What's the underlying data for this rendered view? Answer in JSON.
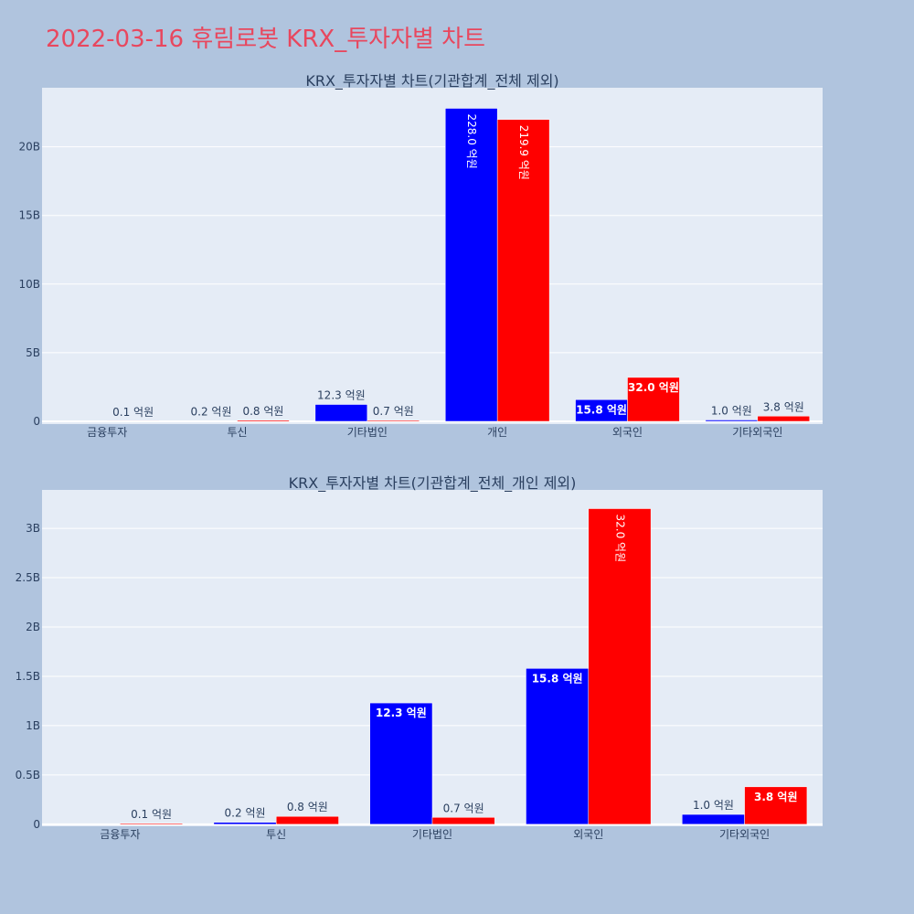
{
  "title": "2022-03-16 휴림로봇 KRX_투자자별 차트",
  "colors": {
    "background": "#b0c4de",
    "plot_bg": "#e5ecf6",
    "buy": "#0000ff",
    "sell": "#ff0000",
    "title": "#e8475e",
    "text": "#2a3f5f"
  },
  "chart_data": [
    {
      "type": "bar",
      "title": "KRX_투자자별 차트(기관합계_전체 제외)",
      "categories": [
        "금융투자",
        "투신",
        "기타법인",
        "개인",
        "외국인",
        "기타외국인"
      ],
      "series": [
        {
          "color": "#0000ff",
          "values": [
            0,
            0.02,
            1.23,
            22.8,
            1.58,
            0.1
          ],
          "labels": [
            "",
            "0.2 억원",
            "12.3 억원",
            "228.0 억원",
            "15.8 억원",
            "1.0 억원"
          ]
        },
        {
          "color": "#ff0000",
          "values": [
            0.01,
            0.08,
            0.07,
            21.99,
            3.2,
            0.38
          ],
          "labels": [
            "0.1 억원",
            "0.8 억원",
            "0.7 억원",
            "219.9 억원",
            "32.0 억원",
            "3.8 억원"
          ]
        }
      ],
      "yticks": [
        0,
        5,
        10,
        15,
        20
      ],
      "yticklabels": [
        "0",
        "5B",
        "10B",
        "15B",
        "20B"
      ],
      "ylim": [
        -0.2,
        24.3
      ],
      "grid": true
    },
    {
      "type": "bar",
      "title": "KRX_투자자별 차트(기관합계_전체_개인 제외)",
      "categories": [
        "금융투자",
        "투신",
        "기타법인",
        "외국인",
        "기타외국인"
      ],
      "series": [
        {
          "color": "#0000ff",
          "values": [
            0,
            0.02,
            1.23,
            1.58,
            0.1
          ],
          "labels": [
            "",
            "0.2 억원",
            "12.3 억원",
            "15.8 억원",
            "1.0 억원"
          ]
        },
        {
          "color": "#ff0000",
          "values": [
            0.01,
            0.08,
            0.07,
            3.2,
            0.38
          ],
          "labels": [
            "0.1 억원",
            "0.8 억원",
            "0.7 억원",
            "32.0 억원",
            "3.8 억원"
          ]
        }
      ],
      "yticks": [
        0,
        0.5,
        1,
        1.5,
        2,
        2.5,
        3
      ],
      "yticklabels": [
        "0",
        "0.5B",
        "1B",
        "1.5B",
        "2B",
        "2.5B",
        "3B"
      ],
      "ylim": [
        -0.02,
        3.39
      ],
      "grid": true
    }
  ]
}
